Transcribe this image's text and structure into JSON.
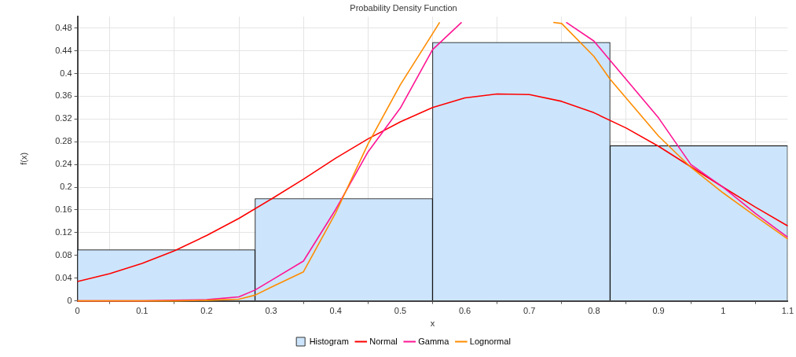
{
  "chart_data": {
    "type": "histogram",
    "title": "Probability Density Function",
    "xlabel": "x",
    "ylabel": "f(x)",
    "xlim": [
      0,
      1.1
    ],
    "ylim": [
      0,
      0.5
    ],
    "xticks": [
      0,
      0.1,
      0.2,
      0.3,
      0.4,
      0.5,
      0.6,
      0.7,
      0.8,
      0.9,
      1,
      1.1
    ],
    "yticks": [
      0,
      0.04,
      0.08,
      0.12,
      0.16,
      0.2,
      0.24,
      0.28,
      0.32,
      0.36,
      0.4,
      0.44,
      0.48
    ],
    "grid": true,
    "legend": "bottom",
    "marker": "none",
    "line_style": "solid",
    "series": [
      {
        "name": "Histogram",
        "color": "#cce5fc",
        "bins": [
          0,
          0.275,
          0.55,
          0.825,
          1.1
        ],
        "values": [
          0.09,
          0.18,
          0.455,
          0.273
        ]
      },
      {
        "name": "Normal",
        "type": "line",
        "color": "#ff0000",
        "x": [
          0,
          0.05,
          0.1,
          0.15,
          0.2,
          0.25,
          0.3,
          0.35,
          0.4,
          0.45,
          0.5,
          0.55,
          0.6,
          0.65,
          0.7,
          0.75,
          0.8,
          0.85,
          0.9,
          0.95,
          1,
          1.05,
          1.1
        ],
        "values": [
          0.034,
          0.048,
          0.066,
          0.088,
          0.115,
          0.145,
          0.179,
          0.214,
          0.251,
          0.285,
          0.315,
          0.34,
          0.357,
          0.364,
          0.363,
          0.351,
          0.331,
          0.304,
          0.272,
          0.236,
          0.2,
          0.165,
          0.132
        ]
      },
      {
        "name": "Gamma",
        "type": "line",
        "color": "#ff1493",
        "x": [
          0,
          0.1,
          0.15,
          0.2,
          0.25,
          0.275,
          0.3,
          0.35,
          0.4,
          0.45,
          0.5,
          0.55,
          0.595,
          0.7,
          0.757,
          0.8,
          0.825,
          0.9,
          0.95,
          1,
          1.05,
          1.1
        ],
        "values": [
          0,
          0,
          0.001,
          0.002,
          0.007,
          0.019,
          0.036,
          0.07,
          0.161,
          0.262,
          0.339,
          0.442,
          0.49,
          null,
          0.49,
          0.457,
          0.423,
          0.322,
          0.24,
          0.2,
          0.154,
          0.112
        ]
      },
      {
        "name": "Lognormal",
        "type": "line",
        "color": "#ff8c00",
        "x": [
          0,
          0.1,
          0.15,
          0.2,
          0.25,
          0.275,
          0.3,
          0.35,
          0.4,
          0.45,
          0.5,
          0.55,
          0.561,
          0.65,
          0.737,
          0.75,
          0.8,
          0.825,
          0.9,
          0.95,
          1,
          1.05,
          1.1
        ],
        "values": [
          0,
          0,
          0,
          0.001,
          0.003,
          0.01,
          0.024,
          0.051,
          0.155,
          0.276,
          0.38,
          0.47,
          0.49,
          null,
          0.49,
          0.488,
          0.43,
          0.39,
          0.29,
          0.235,
          0.19,
          0.149,
          0.109
        ]
      }
    ]
  }
}
